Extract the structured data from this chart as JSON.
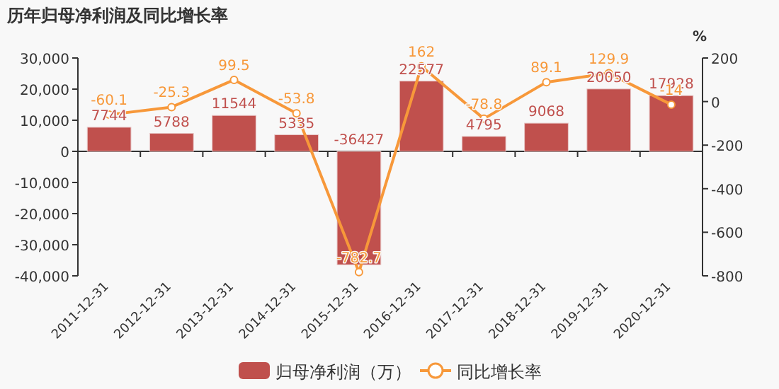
{
  "chart_data": {
    "type": "bar",
    "title": "历年归母净利润及同比增长率",
    "y2label": "%",
    "categories": [
      "2011-12-31",
      "2012-12-31",
      "2013-12-31",
      "2014-12-31",
      "2015-12-31",
      "2016-12-31",
      "2017-12-31",
      "2018-12-31",
      "2019-12-31",
      "2020-12-31"
    ],
    "series": [
      {
        "name": "归母净利润（万）",
        "color": "#c0504d",
        "values": [
          7744,
          5788,
          11544,
          5335,
          -36427,
          22577,
          4795,
          9068,
          20050,
          17928
        ]
      },
      {
        "name": "同比增长率",
        "type": "line",
        "axis": "y2",
        "marker": "circle",
        "color": "#f7983a",
        "values": [
          -60.1,
          -25.3,
          99.5,
          -53.8,
          -782.7,
          162,
          -78.8,
          89.1,
          129.9,
          -14
        ]
      }
    ],
    "ylim": [
      -40000,
      30000
    ],
    "yticks": [
      {
        "value": -40000,
        "label": "-40,000"
      },
      {
        "value": -30000,
        "label": "-30,000"
      },
      {
        "value": -20000,
        "label": "-20,000"
      },
      {
        "value": -10000,
        "label": "-10,000"
      },
      0,
      {
        "value": 10000,
        "label": "10,000"
      },
      {
        "value": 20000,
        "label": "20,000"
      },
      {
        "value": 30000,
        "label": "30,000"
      }
    ],
    "y2lim": [
      -800,
      200
    ],
    "y2ticks": [
      -800,
      -600,
      -400,
      -200,
      0,
      200
    ],
    "data_labels": true,
    "legend": "bottom"
  }
}
